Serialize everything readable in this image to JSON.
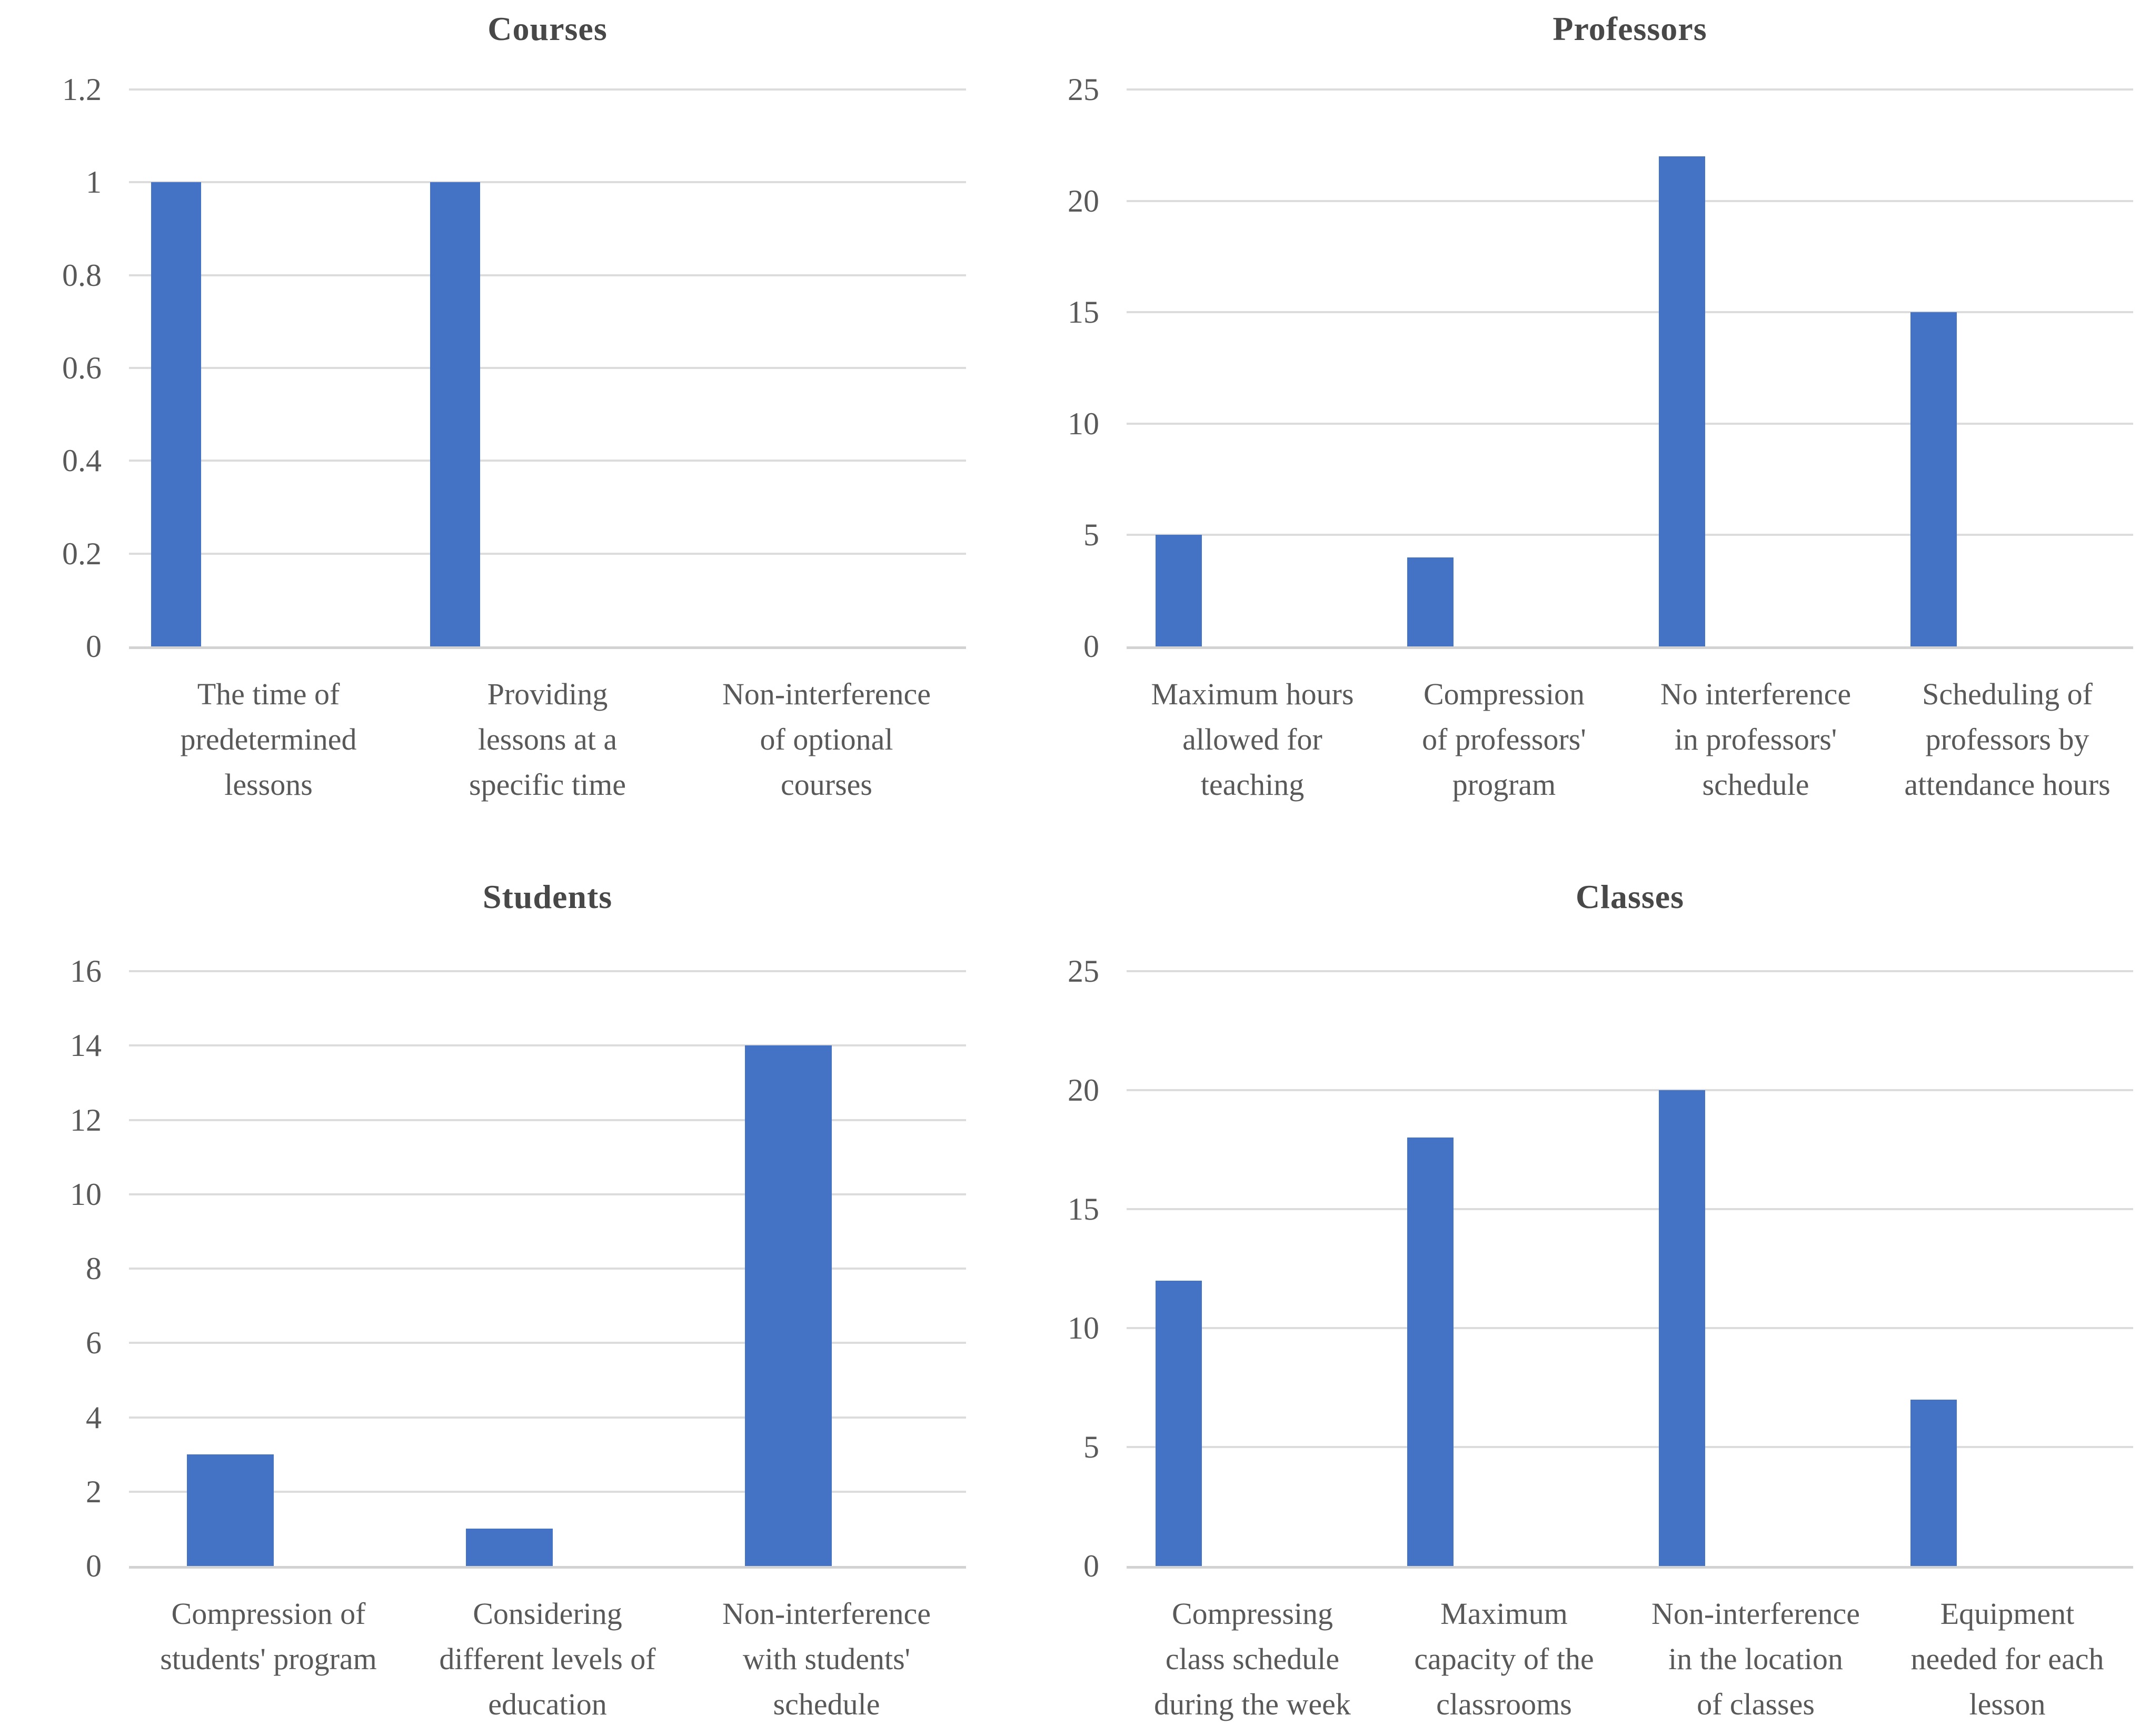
{
  "figure": {
    "background": "#ffffff",
    "layout": "2x2 grid of bar charts",
    "legend": false
  },
  "colors": {
    "bar": "#4472C4",
    "gridline": "#DCDCDC",
    "axis_line": "#D2D2D2",
    "text": "#595959",
    "title_text": "#484848"
  },
  "chart_data": [
    {
      "type": "bar",
      "title": "Courses",
      "categories": [
        "The time of predetermined lessons",
        "Providing lessons at a specific time",
        "Non-interference of optional courses"
      ],
      "categories_lines": [
        [
          "The time of",
          "predetermined",
          "lessons"
        ],
        [
          "Providing",
          "lessons at a",
          "specific time"
        ],
        [
          "Non-interference",
          "of optional",
          "courses"
        ]
      ],
      "values": [
        1,
        1,
        0
      ],
      "y_ticks": [
        "1.2",
        "1",
        "0.8",
        "0.6",
        "0.4",
        "0.2",
        "0"
      ],
      "ylim": [
        0,
        1.2
      ],
      "xlabel": "",
      "ylabel": "",
      "grid": true,
      "legend": false
    },
    {
      "type": "bar",
      "title": "Professors",
      "categories": [
        "Maximum hours allowed for teaching",
        "Compression of professors' program",
        "No interference in professors' schedule",
        "Scheduling of professors by attendance hours"
      ],
      "categories_lines": [
        [
          "Maximum hours",
          "allowed for",
          "teaching"
        ],
        [
          "Compression",
          "of professors'",
          "program"
        ],
        [
          "No interference",
          "in professors'",
          "schedule"
        ],
        [
          "Scheduling of",
          "professors by",
          "attendance hours"
        ]
      ],
      "values": [
        5,
        4,
        22,
        15
      ],
      "y_ticks": [
        "25",
        "20",
        "15",
        "10",
        "5",
        "0"
      ],
      "ylim": [
        0,
        25
      ],
      "xlabel": "",
      "ylabel": "",
      "grid": true,
      "legend": false
    },
    {
      "type": "bar",
      "title": "Students",
      "categories": [
        "Compression of students' program",
        "Considering different levels of education",
        "Non-interference with students' schedule"
      ],
      "categories_lines": [
        [
          "Compression of",
          "students' program"
        ],
        [
          "Considering",
          "different levels of",
          "education"
        ],
        [
          "Non-interference",
          "with students'",
          "schedule"
        ]
      ],
      "values": [
        3,
        1,
        14
      ],
      "y_ticks": [
        "16",
        "14",
        "12",
        "10",
        "8",
        "6",
        "4",
        "2",
        "0"
      ],
      "ylim": [
        0,
        16
      ],
      "xlabel": "",
      "ylabel": "",
      "grid": true,
      "legend": false
    },
    {
      "type": "bar",
      "title": "Classes",
      "categories": [
        "Compressing class schedule during the week",
        "Maximum capacity of the classrooms",
        "Non-interference in the location of classes",
        "Equipment needed for each lesson"
      ],
      "categories_lines": [
        [
          "Compressing",
          "class schedule",
          "during the week"
        ],
        [
          "Maximum",
          "capacity of the",
          "classrooms"
        ],
        [
          "Non-interference",
          "in the location",
          "of classes"
        ],
        [
          "Equipment",
          "needed for each",
          "lesson"
        ]
      ],
      "values": [
        12,
        18,
        20,
        7
      ],
      "y_ticks": [
        "25",
        "20",
        "15",
        "10",
        "5",
        "0"
      ],
      "ylim": [
        0,
        25
      ],
      "xlabel": "",
      "ylabel": "",
      "grid": true,
      "legend": false
    }
  ]
}
